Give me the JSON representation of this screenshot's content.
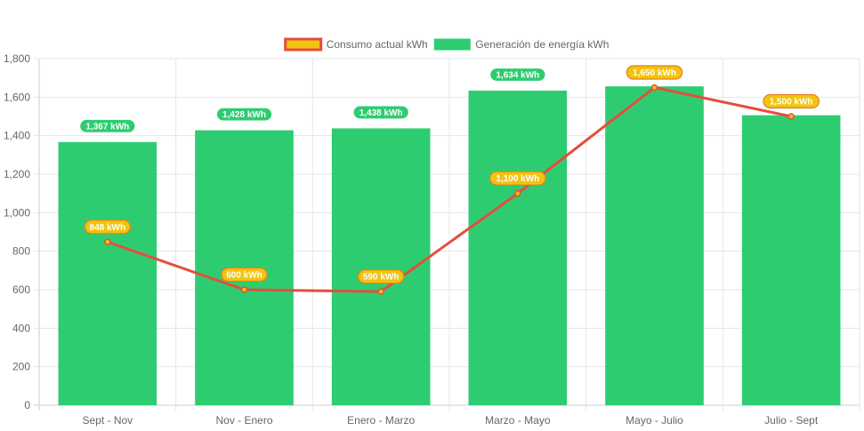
{
  "chart_data": {
    "type": "bar",
    "categories": [
      "Sept - Nov",
      "Nov - Enero",
      "Enero - Marzo",
      "Marzo - Mayo",
      "Mayo - Julio",
      "Julio - Sept"
    ],
    "ylim": [
      0,
      1800
    ],
    "ytick_step": 200,
    "grid": true,
    "legend_position": "top-center",
    "series": [
      {
        "name": "Consumo actual kWh",
        "kind": "line",
        "values": [
          848,
          600,
          590,
          1100,
          1650,
          1500
        ],
        "labels": [
          "848 kWh",
          "600 kWh",
          "590 kWh",
          "1,100 kWh",
          "1,650 kWh",
          "1,500 kWh"
        ],
        "color": "#e74c3c",
        "fill": "#f1c40f"
      },
      {
        "name": "Generación de energía kWh",
        "kind": "bar",
        "values": [
          1367,
          1428,
          1438,
          1634,
          1656,
          1506
        ],
        "labels": [
          "1,367 kWh",
          "1,428 kWh",
          "1,438 kWh",
          "1,634 kWh",
          "",
          ""
        ],
        "color": "#2ecc71"
      }
    ]
  }
}
